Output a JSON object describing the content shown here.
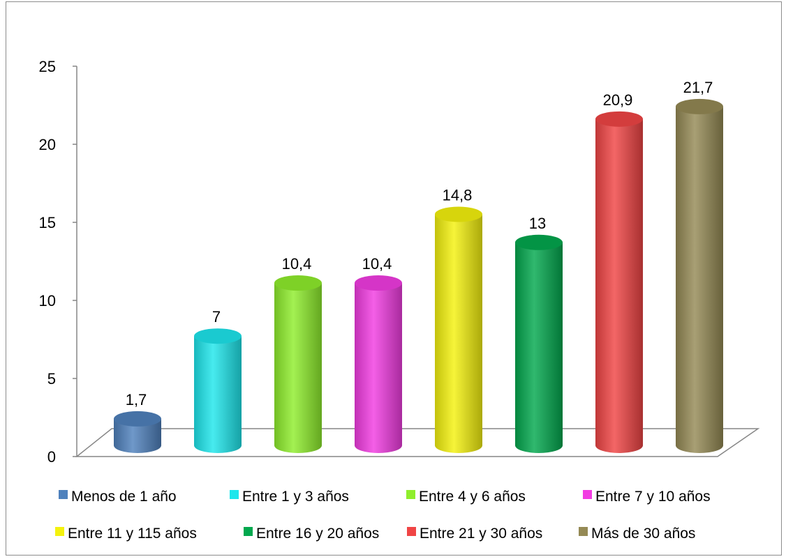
{
  "chart_data": {
    "type": "bar",
    "style": "3d-cylinder",
    "title": "",
    "xlabel": "",
    "ylabel": "",
    "ylim": [
      0,
      25
    ],
    "yticks": [
      0,
      5,
      10,
      15,
      20,
      25
    ],
    "grid": false,
    "legend_position": "bottom",
    "series": [
      {
        "name": "Menos de 1 año",
        "value": 1.7,
        "label": "1,7",
        "color": "#4f81bd"
      },
      {
        "name": "Entre 1 y 3 años",
        "value": 7,
        "label": "7",
        "color": "#1ee6ec"
      },
      {
        "name": "Entre 4 y 6 años",
        "value": 10.4,
        "label": "10,4",
        "color": "#8fee2c"
      },
      {
        "name": "Entre 7 y 10 años",
        "value": 10.4,
        "label": "10,4",
        "color": "#f23ce2"
      },
      {
        "name": "Entre 11 y 115 años",
        "value": 14.8,
        "label": "14,8",
        "color": "#f4f20e"
      },
      {
        "name": "Entre 16 y 20 años",
        "value": 13,
        "label": "13",
        "color": "#03a84e"
      },
      {
        "name": "Entre 21 y 30 años",
        "value": 20.9,
        "label": "20,9",
        "color": "#f04545"
      },
      {
        "name": "Más de 30 años",
        "value": 21.7,
        "label": "21,7",
        "color": "#958a55"
      }
    ]
  }
}
